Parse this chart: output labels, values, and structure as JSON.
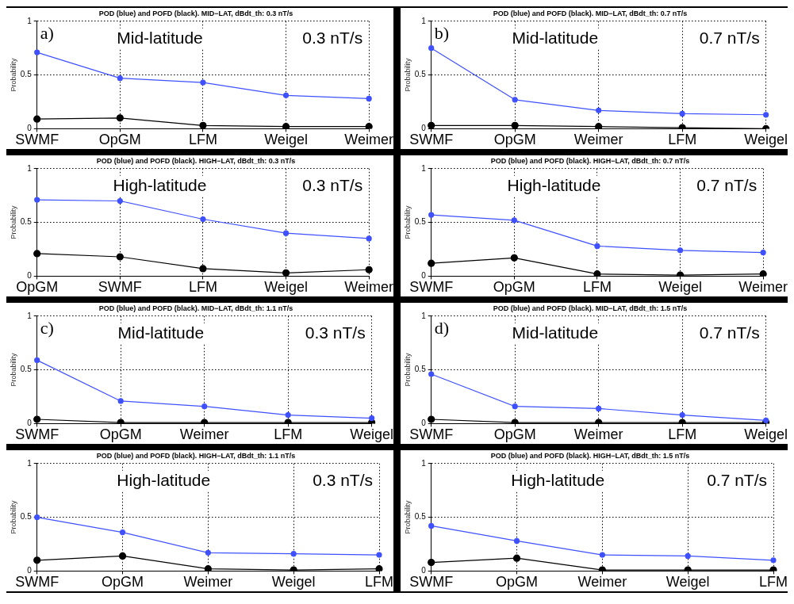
{
  "chart_data": [
    {
      "type": "line",
      "title": "POD (blue) and POFD (black). MID−LAT, dBdt_th: 0.3 nT/s",
      "ylabel": "Probability",
      "annotations": [
        "a)",
        "Mid-latitude",
        "0.3 nT/s"
      ],
      "categories": [
        "SWMF",
        "OpGM",
        "LFM",
        "Weigel",
        "Weimer"
      ],
      "ylim": [
        0,
        1
      ],
      "yticks": [
        0,
        0.5,
        1
      ],
      "grid": true,
      "marker": "circle",
      "legend": false,
      "series": [
        {
          "color": "#3f51ff",
          "values": [
            0.71,
            0.47,
            0.43,
            0.31,
            0.28
          ]
        },
        {
          "color": "#000000",
          "values": [
            0.09,
            0.1,
            0.03,
            0.02,
            0.02
          ]
        }
      ]
    },
    {
      "type": "line",
      "title": "POD (blue) and POFD (black). MID−LAT, dBdt_th: 0.7 nT/s",
      "ylabel": "Probability",
      "annotations": [
        "b)",
        "Mid-latitude",
        "0.7 nT/s"
      ],
      "categories": [
        "SWMF",
        "OpGM",
        "Weimer",
        "LFM",
        "Weigel"
      ],
      "ylim": [
        0,
        1
      ],
      "yticks": [
        0,
        0.5,
        1
      ],
      "grid": true,
      "marker": "circle",
      "legend": false,
      "series": [
        {
          "color": "#3f51ff",
          "values": [
            0.75,
            0.27,
            0.17,
            0.14,
            0.13
          ]
        },
        {
          "color": "#000000",
          "values": [
            0.03,
            0.03,
            0.02,
            0.01,
            0.0
          ]
        }
      ]
    },
    {
      "type": "line",
      "title": "POD (blue) and POFD (black). HIGH−LAT, dBdt_th: 0.3 nT/s",
      "ylabel": "Probability",
      "annotations": [
        "High-latitude",
        "0.3 nT/s"
      ],
      "categories": [
        "OpGM",
        "SWMF",
        "LFM",
        "Weigel",
        "Weimer"
      ],
      "ylim": [
        0,
        1
      ],
      "yticks": [
        0,
        0.5,
        1
      ],
      "grid": true,
      "marker": "circle",
      "legend": false,
      "series": [
        {
          "color": "#3f51ff",
          "values": [
            0.71,
            0.7,
            0.53,
            0.4,
            0.35
          ]
        },
        {
          "color": "#000000",
          "values": [
            0.21,
            0.18,
            0.07,
            0.03,
            0.06
          ]
        }
      ]
    },
    {
      "type": "line",
      "title": "POD (blue) and POFD (black). HIGH−LAT, dBdt_th: 0.7 nT/s",
      "ylabel": "Probability",
      "annotations": [
        "High-latitude",
        "0.7 nT/s"
      ],
      "categories": [
        "SWMF",
        "OpGM",
        "LFM",
        "Weigel",
        "Weimer"
      ],
      "ylim": [
        0,
        1
      ],
      "yticks": [
        0,
        0.5,
        1
      ],
      "grid": true,
      "marker": "circle",
      "legend": false,
      "series": [
        {
          "color": "#3f51ff",
          "values": [
            0.57,
            0.52,
            0.28,
            0.24,
            0.22
          ]
        },
        {
          "color": "#000000",
          "values": [
            0.12,
            0.17,
            0.02,
            0.01,
            0.02
          ]
        }
      ]
    },
    {
      "type": "line",
      "title": "POD (blue) and POFD (black). MID−LAT, dBdt_th: 1.1 nT/s",
      "ylabel": "Probability",
      "annotations": [
        "c)",
        "Mid-latitude",
        "0.3 nT/s"
      ],
      "categories": [
        "SWMF",
        "OpGM",
        "Weimer",
        "LFM",
        "Weigel"
      ],
      "ylim": [
        0,
        1
      ],
      "yticks": [
        0,
        0.5,
        1
      ],
      "grid": true,
      "marker": "circle",
      "legend": false,
      "series": [
        {
          "color": "#3f51ff",
          "values": [
            0.59,
            0.21,
            0.16,
            0.08,
            0.05
          ]
        },
        {
          "color": "#000000",
          "values": [
            0.04,
            0.01,
            0.01,
            0.01,
            0.01
          ]
        }
      ]
    },
    {
      "type": "line",
      "title": "POD (blue) and POFD (black). MID−LAT, dBdt_th: 1.5 nT/s",
      "ylabel": "Probability",
      "annotations": [
        "d)",
        "Mid-latitude",
        "0.7 nT/s"
      ],
      "categories": [
        "SWMF",
        "OpGM",
        "Weimer",
        "LFM",
        "Weigel"
      ],
      "ylim": [
        0,
        1
      ],
      "yticks": [
        0,
        0.5,
        1
      ],
      "grid": true,
      "marker": "circle",
      "legend": false,
      "series": [
        {
          "color": "#3f51ff",
          "values": [
            0.46,
            0.16,
            0.14,
            0.08,
            0.03
          ]
        },
        {
          "color": "#000000",
          "values": [
            0.04,
            0.01,
            0.01,
            0.01,
            0.01
          ]
        }
      ]
    },
    {
      "type": "line",
      "title": "POD (blue) and POFD (black). HIGH−LAT, dBdt_th: 1.1 nT/s",
      "ylabel": "Probability",
      "annotations": [
        "High-latitude",
        "0.3 nT/s"
      ],
      "categories": [
        "SWMF",
        "OpGM",
        "Weimer",
        "Weigel",
        "LFM"
      ],
      "ylim": [
        0,
        1
      ],
      "yticks": [
        0,
        0.5,
        1
      ],
      "grid": true,
      "marker": "circle",
      "legend": false,
      "series": [
        {
          "color": "#3f51ff",
          "values": [
            0.5,
            0.36,
            0.17,
            0.16,
            0.15
          ]
        },
        {
          "color": "#000000",
          "values": [
            0.1,
            0.14,
            0.02,
            0.01,
            0.02
          ]
        }
      ]
    },
    {
      "type": "line",
      "title": "POD (blue) and POFD (black). HIGH−LAT, dBdt_th: 1.5 nT/s",
      "ylabel": "Probability",
      "annotations": [
        "High-latitude",
        "0.7 nT/s"
      ],
      "categories": [
        "SWMF",
        "OpGM",
        "Weimer",
        "Weigel",
        "LFM"
      ],
      "ylim": [
        0,
        1
      ],
      "yticks": [
        0,
        0.5,
        1
      ],
      "grid": true,
      "marker": "circle",
      "legend": false,
      "series": [
        {
          "color": "#3f51ff",
          "values": [
            0.42,
            0.28,
            0.15,
            0.14,
            0.1
          ]
        },
        {
          "color": "#000000",
          "values": [
            0.08,
            0.12,
            0.01,
            0.01,
            0.01
          ]
        }
      ]
    }
  ]
}
